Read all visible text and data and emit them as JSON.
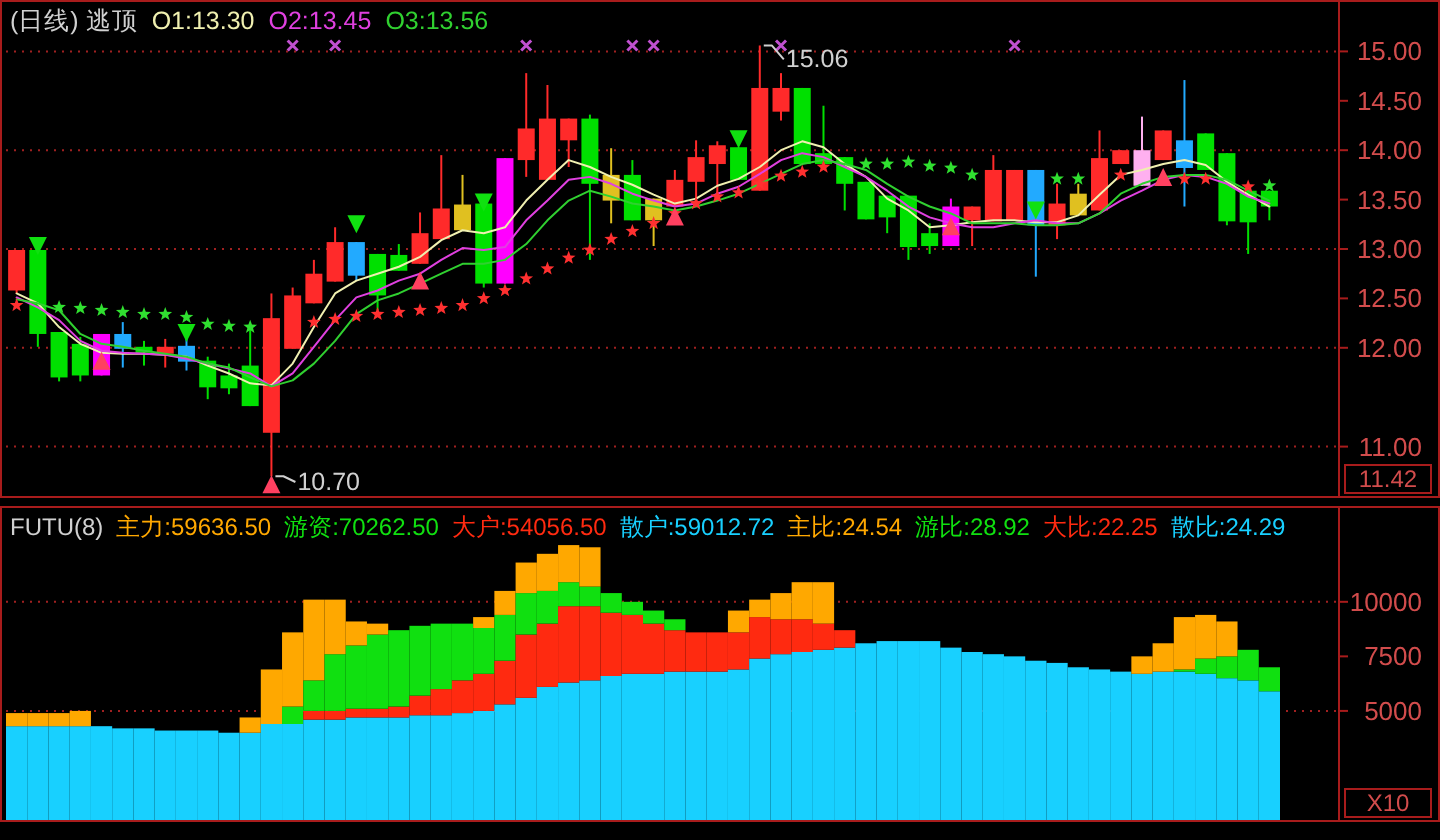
{
  "chart_data": [
    {
      "type": "candlestick",
      "title": "(日线) 逃顶",
      "ylabel": "11.42",
      "legend": "top left",
      "tick_labels": "y",
      "categories": [
        null,
        null,
        null,
        null,
        null,
        null,
        null,
        null,
        null,
        null,
        null,
        null,
        null,
        null,
        null,
        null,
        null,
        null,
        null,
        null,
        null,
        null,
        null,
        null,
        null,
        null,
        null,
        null,
        null,
        null,
        null,
        null,
        null,
        null,
        null,
        null,
        null,
        null,
        null,
        null,
        null,
        null,
        null,
        null,
        null,
        null,
        null,
        null,
        null,
        null,
        null,
        null,
        null,
        null,
        null,
        null,
        null,
        null,
        null,
        null
      ],
      "ohlc": [
        [
          12.58,
          12.99,
          12.55,
          12.99
        ],
        [
          12.99,
          12.99,
          12.01,
          12.14
        ],
        [
          12.16,
          12.16,
          11.66,
          11.7
        ],
        [
          12.04,
          12.11,
          11.66,
          11.72
        ],
        [
          11.72,
          12.14,
          11.72,
          12.14
        ],
        [
          11.99,
          12.26,
          11.8,
          12.14
        ],
        [
          12.01,
          12.07,
          11.82,
          11.95
        ],
        [
          11.94,
          12.09,
          11.8,
          12.01
        ],
        [
          12.02,
          12.11,
          11.77,
          11.86
        ],
        [
          11.87,
          11.91,
          11.48,
          11.6
        ],
        [
          11.72,
          11.84,
          11.53,
          11.59
        ],
        [
          11.82,
          12.21,
          11.41,
          11.41
        ],
        [
          11.14,
          12.55,
          10.7,
          12.3
        ],
        [
          11.99,
          12.61,
          11.99,
          12.53
        ],
        [
          12.45,
          12.89,
          12.45,
          12.75
        ],
        [
          12.67,
          13.22,
          12.67,
          13.07
        ],
        [
          13.07,
          13.07,
          12.68,
          12.73
        ],
        [
          12.95,
          12.95,
          12.38,
          12.53
        ],
        [
          12.94,
          13.05,
          12.78,
          12.78
        ],
        [
          12.85,
          13.37,
          12.85,
          13.16
        ],
        [
          13.1,
          13.95,
          13.1,
          13.41
        ],
        [
          13.19,
          13.75,
          13.19,
          13.45
        ],
        [
          13.46,
          13.46,
          12.61,
          12.65
        ],
        [
          12.65,
          13.92,
          12.65,
          13.92
        ],
        [
          13.9,
          14.78,
          13.73,
          14.22
        ],
        [
          13.7,
          14.66,
          13.7,
          14.32
        ],
        [
          14.1,
          14.32,
          13.83,
          14.32
        ],
        [
          14.32,
          14.36,
          12.89,
          13.66
        ],
        [
          13.49,
          14.02,
          13.26,
          13.75
        ],
        [
          13.75,
          13.9,
          13.29,
          13.29
        ],
        [
          13.29,
          13.51,
          13.03,
          13.51
        ],
        [
          13.43,
          13.8,
          13.43,
          13.7
        ],
        [
          13.68,
          14.1,
          13.49,
          13.93
        ],
        [
          13.86,
          14.09,
          13.49,
          14.05
        ],
        [
          14.03,
          14.03,
          13.7,
          13.7
        ],
        [
          13.59,
          15.06,
          13.59,
          14.63
        ],
        [
          14.39,
          14.78,
          14.3,
          14.63
        ],
        [
          14.63,
          14.63,
          13.86,
          13.86
        ],
        [
          13.97,
          14.45,
          13.86,
          13.86
        ],
        [
          13.93,
          13.93,
          13.39,
          13.66
        ],
        [
          13.68,
          13.68,
          13.3,
          13.3
        ],
        [
          13.54,
          13.54,
          13.16,
          13.32
        ],
        [
          13.54,
          13.54,
          12.89,
          13.02
        ],
        [
          13.16,
          13.26,
          12.95,
          13.03
        ],
        [
          13.03,
          13.51,
          13.03,
          13.43
        ],
        [
          13.29,
          13.43,
          13.03,
          13.43
        ],
        [
          13.28,
          13.95,
          13.28,
          13.8
        ],
        [
          13.29,
          13.8,
          13.29,
          13.8
        ],
        [
          13.8,
          13.8,
          12.72,
          13.24
        ],
        [
          13.24,
          13.66,
          13.1,
          13.46
        ],
        [
          13.34,
          13.66,
          13.34,
          13.56
        ],
        [
          13.39,
          14.2,
          13.39,
          13.92
        ],
        [
          13.86,
          14.0,
          13.86,
          14.0
        ],
        [
          13.64,
          14.34,
          13.64,
          14.0
        ],
        [
          13.9,
          14.2,
          13.9,
          14.2
        ],
        [
          14.1,
          14.71,
          13.43,
          13.82
        ],
        [
          14.17,
          14.17,
          13.8,
          13.8
        ],
        [
          13.97,
          13.97,
          13.24,
          13.28
        ],
        [
          13.59,
          13.59,
          12.95,
          13.27
        ],
        [
          13.59,
          13.59,
          13.29,
          13.43
        ]
      ],
      "colors": [
        "#ff2a2a",
        "#00e000",
        "#00e000",
        "#00e000",
        "#ff00ff",
        "#22aaff",
        "#00e000",
        "#ff2a2a",
        "#22aaff",
        "#00e000",
        "#00e000",
        "#00e000",
        "#ff2a2a",
        "#ff2a2a",
        "#ff2a2a",
        "#ff2a2a",
        "#22aaff",
        "#00e000",
        "#00e000",
        "#ff2a2a",
        "#ff2a2a",
        "#e0c020",
        "#00e000",
        "#ff00ff",
        "#ff2a2a",
        "#ff2a2a",
        "#ff2a2a",
        "#00e000",
        "#e0c020",
        "#00e000",
        "#e0c020",
        "#ff2a2a",
        "#ff2a2a",
        "#ff2a2a",
        "#00e000",
        "#ff2a2a",
        "#ff2a2a",
        "#00e000",
        "#00e000",
        "#00e000",
        "#00e000",
        "#00e000",
        "#00e000",
        "#00e000",
        "#ff00ff",
        "#ff2a2a",
        "#ff2a2a",
        "#ff2a2a",
        "#22aaff",
        "#ff2a2a",
        "#e0c020",
        "#ff2a2a",
        "#ff2a2a",
        "#ffb0f0",
        "#ff2a2a",
        "#22aaff",
        "#00e000",
        "#00e000",
        "#00e000",
        "#00e000"
      ],
      "series": [
        {
          "name": "O1:13.30",
          "type": "line",
          "color": "#f0f0b0",
          "values": [
            12.55,
            12.45,
            12.21,
            12.04,
            11.95,
            11.94,
            11.94,
            11.93,
            11.91,
            11.82,
            11.74,
            11.64,
            11.62,
            11.84,
            12.21,
            12.55,
            12.68,
            12.75,
            12.82,
            12.92,
            13.09,
            13.19,
            13.16,
            13.22,
            13.49,
            13.7,
            13.9,
            13.83,
            13.73,
            13.65,
            13.55,
            13.46,
            13.51,
            13.64,
            13.71,
            13.83,
            14.0,
            14.09,
            14.03,
            13.86,
            13.73,
            13.51,
            13.39,
            13.22,
            13.24,
            13.27,
            13.29,
            13.29,
            13.27,
            13.27,
            13.34,
            13.55,
            13.75,
            13.8,
            13.86,
            13.9,
            13.85,
            13.68,
            13.55,
            13.43
          ]
        },
        {
          "name": "O2:13.45",
          "type": "line",
          "color": "#e040e0",
          "values": [
            12.51,
            12.41,
            12.28,
            12.07,
            11.97,
            11.95,
            11.94,
            11.93,
            11.89,
            11.84,
            11.79,
            11.74,
            11.61,
            11.74,
            12.01,
            12.28,
            12.51,
            12.58,
            12.68,
            12.75,
            12.89,
            13.01,
            12.99,
            13.02,
            13.29,
            13.49,
            13.7,
            13.73,
            13.66,
            13.56,
            13.49,
            13.43,
            13.46,
            13.56,
            13.63,
            13.76,
            13.9,
            13.97,
            13.93,
            13.83,
            13.73,
            13.59,
            13.43,
            13.32,
            13.26,
            13.22,
            13.22,
            13.26,
            13.29,
            13.26,
            13.26,
            13.36,
            13.49,
            13.59,
            13.7,
            13.75,
            13.73,
            13.66,
            13.53,
            13.46
          ]
        },
        {
          "name": "O3:13.56",
          "type": "line",
          "color": "#30d030",
          "values": [
            12.49,
            12.45,
            12.38,
            12.14,
            12.04,
            12.01,
            11.97,
            11.94,
            11.91,
            11.84,
            11.8,
            11.7,
            11.61,
            11.67,
            11.84,
            12.07,
            12.34,
            12.48,
            12.55,
            12.65,
            12.75,
            12.85,
            12.85,
            12.89,
            13.05,
            13.29,
            13.49,
            13.59,
            13.53,
            13.46,
            13.43,
            13.39,
            13.43,
            13.49,
            13.56,
            13.66,
            13.76,
            13.86,
            13.9,
            13.86,
            13.8,
            13.66,
            13.53,
            13.43,
            13.36,
            13.26,
            13.26,
            13.26,
            13.24,
            13.24,
            13.26,
            13.36,
            13.56,
            13.66,
            13.73,
            13.75,
            13.75,
            13.7,
            13.59,
            13.49
          ]
        },
        {
          "type": "scatter",
          "marker": "star",
          "color": "#ff3030",
          "values": [
            12.43,
            null,
            null,
            null,
            null,
            null,
            null,
            null,
            null,
            null,
            null,
            null,
            null,
            null,
            12.26,
            12.29,
            12.32,
            12.34,
            12.36,
            12.38,
            12.4,
            12.43,
            12.5,
            12.58,
            12.7,
            12.8,
            12.91,
            12.99,
            13.1,
            13.18,
            13.26,
            13.36,
            13.46,
            13.53,
            13.57,
            13.66,
            13.74,
            13.78,
            13.83,
            null,
            null,
            null,
            null,
            null,
            null,
            null,
            null,
            null,
            null,
            null,
            null,
            null,
            13.75,
            null,
            null,
            13.71,
            13.71,
            null,
            13.63,
            null
          ]
        },
        {
          "type": "scatter",
          "marker": "star",
          "color": "#30e030",
          "values": [
            null,
            null,
            12.41,
            12.4,
            12.38,
            12.36,
            12.34,
            12.34,
            12.31,
            12.24,
            12.22,
            12.21,
            null,
            null,
            null,
            null,
            null,
            null,
            null,
            null,
            null,
            null,
            null,
            null,
            null,
            null,
            null,
            null,
            null,
            null,
            null,
            null,
            null,
            null,
            null,
            null,
            null,
            null,
            null,
            null,
            13.86,
            13.86,
            13.88,
            13.84,
            13.82,
            13.75,
            null,
            null,
            null,
            13.71,
            13.71,
            null,
            null,
            null,
            null,
            null,
            null,
            null,
            null,
            13.64
          ]
        },
        {
          "type": "scatter",
          "marker": "cross",
          "color": "#c050d0",
          "values": [
            null,
            null,
            null,
            null,
            null,
            null,
            null,
            null,
            null,
            null,
            null,
            null,
            null,
            15.06,
            null,
            15.06,
            null,
            null,
            null,
            null,
            null,
            null,
            null,
            null,
            15.06,
            null,
            null,
            null,
            null,
            15.06,
            15.06,
            null,
            null,
            null,
            null,
            null,
            15.06,
            null,
            null,
            null,
            null,
            null,
            null,
            null,
            null,
            null,
            null,
            15.06,
            null,
            null,
            null,
            null,
            null,
            null,
            null,
            null,
            null,
            null,
            null,
            null
          ]
        },
        {
          "type": "scatter",
          "marker": "triangle",
          "color": "#10e010",
          "values": [
            null,
            13.03,
            null,
            null,
            null,
            null,
            null,
            null,
            12.15,
            null,
            null,
            null,
            null,
            null,
            null,
            null,
            13.25,
            null,
            null,
            null,
            null,
            null,
            13.47,
            null,
            null,
            null,
            null,
            null,
            null,
            null,
            null,
            null,
            null,
            null,
            14.11,
            null,
            null,
            null,
            null,
            null,
            null,
            null,
            null,
            null,
            null,
            null,
            null,
            null,
            13.39,
            null,
            null,
            null,
            null,
            null,
            null,
            null,
            null,
            null,
            null,
            null
          ]
        },
        {
          "type": "scatter",
          "marker": "triangle",
          "color": "#ff4060",
          "values": [
            null,
            null,
            null,
            null,
            11.87,
            null,
            null,
            null,
            null,
            null,
            null,
            null,
            10.62,
            null,
            null,
            null,
            null,
            null,
            null,
            12.68,
            null,
            null,
            null,
            null,
            null,
            null,
            null,
            null,
            null,
            null,
            null,
            13.33,
            null,
            null,
            null,
            null,
            null,
            null,
            null,
            null,
            null,
            null,
            null,
            null,
            13.23,
            null,
            null,
            null,
            null,
            null,
            null,
            null,
            null,
            null,
            13.73,
            null,
            null,
            null,
            null,
            null
          ]
        }
      ],
      "ylim": [
        10.5,
        15.5
      ],
      "yticks": [
        {
          "value": 11,
          "label": "11.00"
        },
        {
          "value": 12,
          "label": "12.00"
        },
        {
          "value": 12.5,
          "label": "12.50"
        },
        {
          "value": 13,
          "label": "13.00"
        },
        {
          "value": 13.5,
          "label": "13.50"
        },
        {
          "value": 14,
          "label": "14.00"
        },
        {
          "value": 14.5,
          "label": "14.50"
        },
        {
          "value": 15,
          "label": "15.00"
        }
      ],
      "ref_lines": [
        {
          "axis": "y",
          "value": 11,
          "line_style": "dotted",
          "color": "#a02020"
        },
        {
          "axis": "y",
          "value": 12,
          "line_style": "dotted",
          "color": "#a02020"
        },
        {
          "axis": "y",
          "value": 13,
          "line_style": "dotted",
          "color": "#a02020"
        },
        {
          "axis": "y",
          "value": 14,
          "line_style": "dotted",
          "color": "#a02020"
        },
        {
          "axis": "y",
          "value": 15,
          "line_style": "dotted",
          "color": "#a02020"
        }
      ],
      "annotations": [
        {
          "text": "15.06",
          "y": 15.06
        },
        "10.70"
      ]
    },
    {
      "type": "bar",
      "stacked": true,
      "title": "FUTU(8)",
      "ylabel": "X10",
      "legend": "top left",
      "tick_labels": "y",
      "categories": [
        null,
        null,
        null,
        null,
        null,
        null,
        null,
        null,
        null,
        null,
        null,
        null,
        null,
        null,
        null,
        null,
        null,
        null,
        null,
        null,
        null,
        null,
        null,
        null,
        null,
        null,
        null,
        null,
        null,
        null,
        null,
        null,
        null,
        null,
        null,
        null,
        null,
        null,
        null,
        null,
        null,
        null,
        null,
        null,
        null,
        null,
        null,
        null,
        null,
        null,
        null,
        null,
        null,
        null,
        null,
        null,
        null,
        null,
        null,
        null
      ],
      "series": [
        {
          "name": "散户:59012.72",
          "color": "#18d0ff",
          "values": [
            4300,
            4300,
            4300,
            4300,
            4300,
            4200,
            4200,
            4100,
            4100,
            4100,
            4000,
            4000,
            4400,
            4400,
            4600,
            4600,
            4700,
            4700,
            4700,
            4800,
            4800,
            4900,
            5000,
            5300,
            5600,
            6100,
            6300,
            6400,
            6600,
            6700,
            6700,
            6800,
            6800,
            6800,
            6900,
            7400,
            7600,
            7700,
            7800,
            7900,
            8100,
            8200,
            8200,
            8200,
            7900,
            7700,
            7600,
            7500,
            7300,
            7200,
            7000,
            6900,
            6800,
            6700,
            6800,
            6800,
            6700,
            6500,
            6400,
            5900
          ]
        },
        {
          "name": "大户:54056.50",
          "color": "#ff2a10",
          "values": [
            null,
            null,
            null,
            null,
            null,
            null,
            null,
            null,
            null,
            null,
            null,
            null,
            null,
            null,
            400,
            400,
            400,
            400,
            500,
            900,
            1200,
            1500,
            1700,
            2000,
            2900,
            2900,
            3500,
            3400,
            2900,
            2700,
            2300,
            1900,
            1800,
            1800,
            1700,
            1900,
            1600,
            1500,
            1200,
            800,
            null,
            null,
            null,
            null,
            null,
            null,
            null,
            null,
            null,
            null,
            null,
            null,
            null,
            null,
            null,
            null,
            null,
            null,
            null,
            null
          ]
        },
        {
          "name": "游资:70262.50",
          "color": "#10e010",
          "values": [
            null,
            null,
            null,
            null,
            null,
            null,
            null,
            null,
            null,
            null,
            null,
            null,
            null,
            800,
            1400,
            2600,
            2900,
            3400,
            3500,
            3200,
            3000,
            2600,
            2100,
            2100,
            1900,
            1500,
            1100,
            900,
            900,
            600,
            600,
            500,
            null,
            null,
            null,
            null,
            null,
            null,
            null,
            null,
            null,
            null,
            null,
            null,
            null,
            null,
            null,
            null,
            null,
            null,
            null,
            null,
            null,
            null,
            null,
            100,
            700,
            1000,
            1400,
            1100
          ]
        },
        {
          "name": "主力:59636.50",
          "color": "#ffa800",
          "values": [
            600,
            600,
            600,
            700,
            null,
            null,
            null,
            null,
            null,
            null,
            null,
            700,
            2500,
            3400,
            3700,
            2500,
            1100,
            500,
            null,
            null,
            null,
            null,
            500,
            1100,
            1400,
            1700,
            1700,
            1800,
            null,
            null,
            null,
            null,
            null,
            null,
            1000,
            800,
            1200,
            1700,
            1900,
            null,
            null,
            null,
            null,
            null,
            null,
            null,
            null,
            null,
            null,
            null,
            null,
            null,
            null,
            800,
            1300,
            2400,
            2000,
            1600,
            null,
            null
          ]
        }
      ],
      "ylim": [
        0,
        14300
      ],
      "yticks": [
        5000,
        7500,
        10000
      ],
      "ref_lines": [
        {
          "axis": "y",
          "value": 5000,
          "line_style": "dotted",
          "color": "#a02020"
        },
        {
          "axis": "y",
          "value": 10000,
          "line_style": "dotted",
          "color": "#a02020"
        }
      ],
      "annotations": [
        "主比:24.54",
        "游比:28.92",
        "大比:22.25",
        "散比:24.29"
      ]
    }
  ]
}
